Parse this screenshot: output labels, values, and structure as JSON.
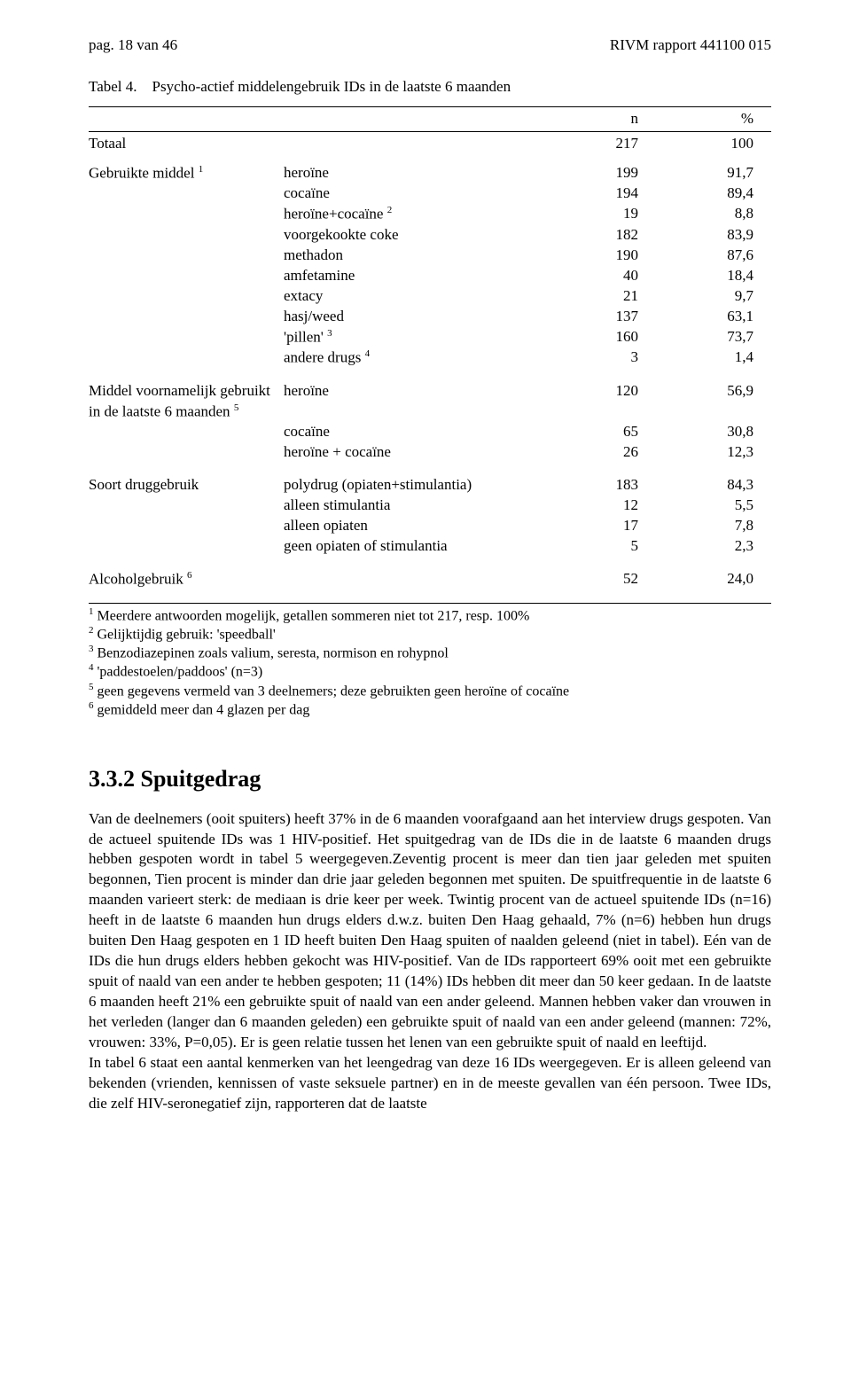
{
  "header": {
    "left": "pag. 18 van 46",
    "right": "RIVM rapport 441100 015"
  },
  "table": {
    "title_prefix": "Tabel 4.",
    "title_text": "Psycho-actief middelengebruik IDs in de laatste 6 maanden",
    "col_n": "n",
    "col_pct": "%",
    "totaal_label": "Totaal",
    "totaal_n": "217",
    "totaal_pct": "100",
    "groups": [
      {
        "label": "Gebruikte middel",
        "label_sup": "1",
        "rows": [
          {
            "item": "heroïne",
            "n": "199",
            "pct": "91,7"
          },
          {
            "item": "cocaïne",
            "n": "194",
            "pct": "89,4"
          },
          {
            "item": "heroïne+cocaïne",
            "sup": "2",
            "n": "19",
            "pct": "8,8"
          },
          {
            "item": "voorgekookte coke",
            "n": "182",
            "pct": "83,9"
          },
          {
            "item": "methadon",
            "n": "190",
            "pct": "87,6"
          },
          {
            "item": "amfetamine",
            "n": "40",
            "pct": "18,4"
          },
          {
            "item": "extacy",
            "n": "21",
            "pct": "9,7"
          },
          {
            "item": "hasj/weed",
            "n": "137",
            "pct": "63,1"
          },
          {
            "item": "'pillen'",
            "sup": "3",
            "n": "160",
            "pct": "73,7"
          },
          {
            "item": "andere drugs",
            "sup": "4",
            "n": "3",
            "pct": "1,4"
          }
        ]
      },
      {
        "label": "Middel voornamelijk gebruikt in de laatste 6 maanden",
        "label_sup": "5",
        "rows": [
          {
            "item": "heroïne",
            "n": "120",
            "pct": "56,9"
          },
          {
            "item": "cocaïne",
            "n": "65",
            "pct": "30,8"
          },
          {
            "item": "heroïne + cocaïne",
            "n": "26",
            "pct": "12,3"
          }
        ]
      },
      {
        "label": "Soort druggebruik",
        "rows": [
          {
            "item": "polydrug (opiaten+stimulantia)",
            "n": "183",
            "pct": "84,3"
          },
          {
            "item": "alleen stimulantia",
            "n": "12",
            "pct": "5,5"
          },
          {
            "item": "alleen opiaten",
            "n": "17",
            "pct": "7,8"
          },
          {
            "item": "geen opiaten of stimulantia",
            "n": "5",
            "pct": "2,3"
          }
        ]
      },
      {
        "label": "Alcoholgebruik",
        "label_sup": "6",
        "rows": [
          {
            "item": "",
            "n": "52",
            "pct": "24,0"
          }
        ]
      }
    ],
    "footnotes": [
      {
        "sup": "1",
        "text": " Meerdere antwoorden mogelijk, getallen sommeren niet tot 217, resp. 100%"
      },
      {
        "sup": "2",
        "text": " Gelijktijdig gebruik: 'speedball'"
      },
      {
        "sup": "3",
        "text": " Benzodiazepinen zoals valium, seresta, normison en rohypnol"
      },
      {
        "sup": "4",
        "text": " 'paddestoelen/paddoos' (n=3)"
      },
      {
        "sup": "5",
        "text": " geen gegevens vermeld van 3 deelnemers; deze gebruikten geen heroïne of cocaïne"
      },
      {
        "sup": "6",
        "text": " gemiddeld meer dan 4 glazen per dag"
      }
    ]
  },
  "section": {
    "heading": "3.3.2 Spuitgedrag",
    "paragraphs": [
      "Van de deelnemers (ooit spuiters) heeft 37% in de 6 maanden voorafgaand aan het interview drugs gespoten. Van de actueel spuitende IDs was 1 HIV-positief. Het spuitgedrag van de IDs die in de laatste 6 maanden drugs hebben gespoten wordt in tabel 5 weergegeven.Zeventig procent is meer dan tien jaar geleden met spuiten begonnen, Tien procent is minder dan drie jaar geleden begonnen met spuiten. De spuitfrequentie in de laatste 6 maanden varieert sterk: de mediaan is drie keer per week. Twintig procent van de actueel spuitende IDs (n=16) heeft in de laatste 6 maanden hun drugs elders d.w.z. buiten Den Haag gehaald, 7% (n=6) hebben hun drugs buiten Den Haag gespoten en 1 ID heeft buiten Den Haag spuiten of naalden geleend (niet in tabel). Eén van de IDs die hun drugs elders hebben gekocht was HIV-positief. Van de IDs rapporteert 69% ooit met een gebruikte spuit of naald van een ander te hebben gespoten; 11 (14%) IDs hebben dit meer dan 50 keer gedaan. In de laatste 6 maanden heeft 21% een gebruikte spuit of naald van een ander geleend. Mannen hebben vaker dan vrouwen in het verleden (langer dan 6 maanden geleden) een gebruikte spuit of naald van een ander geleend (mannen: 72%, vrouwen: 33%, P=0,05). Er is geen relatie tussen het lenen van een gebruikte spuit of naald en leeftijd.",
      "In tabel 6 staat een aantal kenmerken van het leengedrag van deze 16 IDs weergegeven. Er is alleen geleend van bekenden (vrienden, kennissen of vaste seksuele partner) en in de meeste gevallen van één persoon. Twee IDs, die zelf HIV-seronegatief zijn, rapporteren dat de laatste"
    ]
  }
}
